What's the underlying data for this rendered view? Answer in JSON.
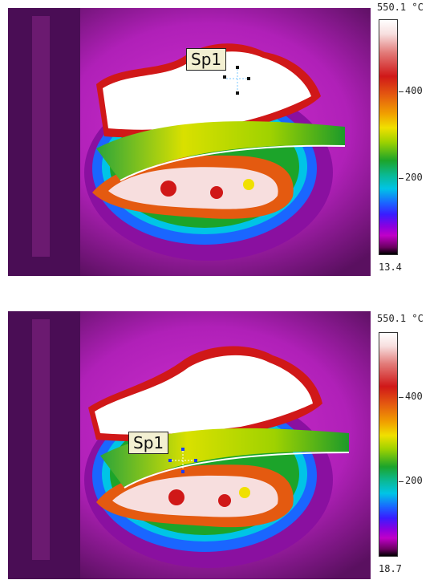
{
  "panels": [
    {
      "spot_label": "Sp1",
      "scale": {
        "max": "550.1 °C",
        "min": "13.4",
        "ticks": [
          "400",
          "200"
        ]
      }
    },
    {
      "spot_label": "Sp1",
      "scale": {
        "max": "550.1 °C",
        "min": "18.7",
        "ticks": [
          "400",
          "200"
        ]
      }
    }
  ],
  "colors": {
    "background": "#ffffff",
    "cold": "#5a1060",
    "hot": "#ffffff",
    "spot_marker_top": "#111111",
    "spot_marker_bottom": "#1a3cff"
  },
  "icons": [
    "spot-marker-icon"
  ]
}
